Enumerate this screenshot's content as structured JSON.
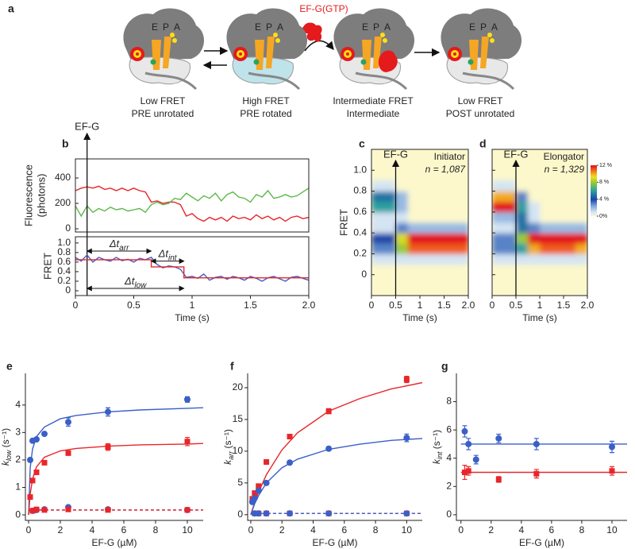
{
  "diagram": {
    "label": "a",
    "factor": "EF-G(GTP)",
    "states": [
      {
        "sites": [
          "E",
          "P",
          "A"
        ],
        "lines": [
          "Low FRET",
          "PRE unrotated"
        ]
      },
      {
        "sites": [
          "E",
          "P",
          "A"
        ],
        "lines": [
          "High FRET",
          "PRE rotated"
        ]
      },
      {
        "sites": [
          "E",
          "P",
          "A"
        ],
        "lines": [
          "Intermediate FRET",
          "Intermediate"
        ]
      },
      {
        "sites": [
          "E",
          "P",
          "A"
        ],
        "lines": [
          "Low FRET",
          "POST unrotated"
        ]
      }
    ]
  },
  "chart_data": [
    {
      "type": "line",
      "label": "b",
      "ylabel": [
        "Fluorescence",
        "(photons)"
      ],
      "xlim": [
        0,
        2
      ],
      "ylim": [
        -25,
        550
      ],
      "yticks": [
        0,
        200,
        400
      ],
      "frame": true,
      "marker": {
        "x": 0.1,
        "label": "EF-G"
      },
      "x": [
        0,
        0.05,
        0.1,
        0.15,
        0.2,
        0.25,
        0.3,
        0.35,
        0.4,
        0.45,
        0.5,
        0.55,
        0.6,
        0.65,
        0.7,
        0.75,
        0.8,
        0.85,
        0.9,
        0.95,
        1,
        1.05,
        1.1,
        1.15,
        1.2,
        1.25,
        1.3,
        1.35,
        1.4,
        1.45,
        1.5,
        1.55,
        1.6,
        1.65,
        1.7,
        1.75,
        1.8,
        1.85,
        1.9,
        1.95,
        2
      ],
      "series": [
        {
          "color": "#e8262a",
          "line": "solid",
          "values": [
            300,
            320,
            330,
            320,
            335,
            310,
            320,
            300,
            320,
            300,
            320,
            300,
            290,
            210,
            220,
            200,
            210,
            210,
            190,
            100,
            120,
            80,
            60,
            90,
            70,
            90,
            60,
            100,
            80,
            90,
            70,
            110,
            80,
            100,
            70,
            90,
            60,
            90,
            100,
            80,
            90
          ]
        },
        {
          "color": "#5cb848",
          "line": "solid",
          "values": [
            180,
            100,
            180,
            130,
            160,
            140,
            170,
            150,
            160,
            140,
            150,
            160,
            130,
            190,
            210,
            190,
            200,
            240,
            230,
            280,
            250,
            220,
            260,
            240,
            280,
            220,
            270,
            290,
            250,
            240,
            210,
            270,
            250,
            300,
            240,
            250,
            270,
            250,
            260,
            290,
            320
          ]
        }
      ]
    },
    {
      "type": "line",
      "ylabel": "FRET",
      "xlabel": "Time (s)",
      "xlim": [
        0,
        2
      ],
      "ylim": [
        -0.1,
        1.13
      ],
      "frame": true,
      "xticks": [
        0,
        0.5,
        1,
        1.5,
        {
          "value": 2,
          "label": "2.0"
        }
      ],
      "yticks": [
        0,
        0.2,
        0.4,
        0.6,
        0.8,
        {
          "value": 1,
          "label": "1.0"
        }
      ],
      "x": [
        0,
        0.05,
        0.1,
        0.15,
        0.2,
        0.25,
        0.3,
        0.35,
        0.4,
        0.45,
        0.5,
        0.55,
        0.6,
        0.65,
        0.7,
        0.75,
        0.8,
        0.85,
        0.9,
        0.95,
        1,
        1.05,
        1.1,
        1.15,
        1.2,
        1.25,
        1.3,
        1.35,
        1.4,
        1.45,
        1.5,
        1.55,
        1.6,
        1.65,
        1.7,
        1.75,
        1.8,
        1.85,
        1.9,
        1.95,
        2
      ],
      "series": [
        {
          "color": "#3b5fc8",
          "line": "solid",
          "values": [
            0.7,
            0.62,
            0.75,
            0.6,
            0.7,
            0.65,
            0.62,
            0.7,
            0.63,
            0.66,
            0.6,
            0.68,
            0.65,
            0.7,
            0.55,
            0.48,
            0.52,
            0.5,
            0.45,
            0.28,
            0.3,
            0.26,
            0.35,
            0.22,
            0.28,
            0.3,
            0.24,
            0.3,
            0.27,
            0.22,
            0.3,
            0.26,
            0.2,
            0.27,
            0.3,
            0.25,
            0.2,
            0.28,
            0.3,
            0.26,
            0.22
          ]
        },
        {
          "color": "#e8262a",
          "line": "solid",
          "x": [
            0,
            0.65,
            0.65,
            0.93,
            0.93,
            2
          ],
          "values": [
            0.65,
            0.65,
            0.5,
            0.5,
            0.27,
            0.27
          ]
        }
      ],
      "intervals": [
        {
          "symbol": "Δt",
          "sub": "arr",
          "from": 0.1,
          "to": 0.65,
          "y": 0.83
        },
        {
          "symbol": "Δt",
          "sub": "int",
          "from": 0.65,
          "to": 0.93,
          "y": 0.62
        },
        {
          "symbol": "Δt",
          "sub": "low",
          "from": 0.1,
          "to": 0.93,
          "y": 0.05
        }
      ]
    },
    {
      "type": "heatmap",
      "label": "c",
      "ylabel": "FRET",
      "xlabel": "Time (s)",
      "note": "Initiator",
      "count": "n = 1,087",
      "xlim": [
        0,
        2
      ],
      "ylim": [
        -0.2,
        1.2
      ],
      "frame": true,
      "marker": {
        "x": 0.5,
        "label": "EF-G"
      },
      "xticks": [
        0,
        0.5,
        1,
        1.5,
        {
          "value": 2,
          "label": "2.0"
        }
      ],
      "yticks": [
        0,
        0.2,
        0.4,
        0.6,
        0.8,
        {
          "value": 1,
          "label": "1.0"
        }
      ],
      "zlim": [
        0,
        12
      ],
      "x_edges": [
        0,
        0.25,
        0.5,
        0.75,
        1,
        1.25,
        1.5,
        1.75,
        2
      ],
      "y_edges": [
        0.1,
        0.2,
        0.3,
        0.4,
        0.5,
        0.6,
        0.7,
        0.8,
        0.9
      ],
      "values": [
        [
          1,
          1,
          1,
          1,
          1,
          1,
          1,
          1
        ],
        [
          3,
          3,
          8,
          11,
          11,
          11,
          11,
          11
        ],
        [
          4,
          4,
          9,
          12,
          12,
          12,
          12,
          12
        ],
        [
          1,
          1,
          3,
          2,
          2,
          2,
          2,
          2
        ],
        [
          1,
          1,
          1,
          0,
          0,
          0,
          0,
          0
        ],
        [
          6,
          6,
          2,
          0,
          0,
          0,
          0,
          0
        ],
        [
          5,
          5,
          2,
          0,
          0,
          0,
          0,
          0
        ],
        [
          1,
          1,
          0,
          0,
          0,
          0,
          0,
          0
        ]
      ]
    },
    {
      "type": "heatmap",
      "label": "d",
      "xlabel": "Time (s)",
      "note": "Elongator",
      "count": "n = 1,329",
      "xlim": [
        0,
        2
      ],
      "ylim": [
        -0.2,
        1.2
      ],
      "frame": true,
      "marker": {
        "x": 0.5,
        "label": "EF-G"
      },
      "xticks": [
        0,
        0.5,
        1,
        1.5,
        {
          "value": 2,
          "label": "2.0"
        }
      ],
      "yticks": [
        0,
        0.2,
        0.4,
        0.6,
        0.8,
        1
      ],
      "show_ytick_labels": false,
      "zlim": [
        0,
        12
      ],
      "colorbar": true,
      "zticks": [
        {
          "value": 12,
          "label": "12 %"
        },
        {
          "value": 8,
          "label": "8 %"
        },
        {
          "value": 4,
          "label": "4 %"
        },
        {
          "value": 0,
          "label": "0%"
        }
      ],
      "x_edges": [
        0,
        0.25,
        0.5,
        0.75,
        1,
        1.25,
        1.5,
        1.75,
        2
      ],
      "y_edges": [
        0.1,
        0.2,
        0.3,
        0.4,
        0.5,
        0.6,
        0.7,
        0.8,
        0.9
      ],
      "values": [
        [
          1,
          1,
          1,
          1,
          1,
          1,
          1,
          1
        ],
        [
          3,
          3,
          6,
          10,
          11,
          11,
          11,
          10
        ],
        [
          3,
          3,
          8,
          12,
          12,
          12,
          12,
          12
        ],
        [
          1,
          1,
          5,
          3,
          2,
          2,
          2,
          2
        ],
        [
          2,
          2,
          5,
          1,
          0,
          0,
          0,
          0
        ],
        [
          12,
          12,
          6,
          1,
          0,
          0,
          0,
          0
        ],
        [
          10,
          10,
          3,
          0,
          0,
          0,
          0,
          0
        ],
        [
          1,
          1,
          0,
          0,
          0,
          0,
          0,
          0
        ]
      ]
    },
    {
      "type": "scatter",
      "label": "e",
      "xlabel": "EF-G (µM)",
      "ylabel": {
        "symbol": "k",
        "sub": "low",
        "unit": " (s⁻¹)"
      },
      "xlim": [
        -0.2,
        11
      ],
      "ylim": [
        -0.2,
        5.15
      ],
      "xticks": [
        0,
        2,
        4,
        6,
        8,
        10
      ],
      "yticks": [
        0,
        1,
        2,
        3,
        4
      ],
      "frame": false,
      "series": [
        {
          "color": "#3b5fc8",
          "line": "solid",
          "x": [
            0,
            0.1,
            0.25,
            0.5,
            1,
            2,
            3,
            5,
            7,
            10,
            11
          ],
          "values": [
            0,
            1.7,
            2.4,
            2.85,
            3.2,
            3.5,
            3.62,
            3.75,
            3.82,
            3.88,
            3.9
          ]
        },
        {
          "color": "#e8262a",
          "line": "solid",
          "x": [
            0,
            0.1,
            0.25,
            0.5,
            1,
            2,
            3,
            5,
            7,
            10,
            11
          ],
          "values": [
            0,
            0.75,
            1.3,
            1.75,
            2.1,
            2.33,
            2.42,
            2.5,
            2.55,
            2.58,
            2.6
          ]
        },
        {
          "color": "#3b5fc8",
          "line": "dashed",
          "x": [
            0,
            11
          ],
          "values": [
            0.18,
            0.18
          ]
        },
        {
          "color": "#e8262a",
          "line": "dashed",
          "x": [
            0,
            11
          ],
          "values": [
            0.18,
            0.18
          ]
        },
        {
          "color": "#3b5fc8",
          "marker": "circle",
          "x": [
            0.1,
            0.25,
            0.5,
            1,
            2.5,
            5,
            10
          ],
          "values": [
            2.0,
            2.7,
            2.75,
            2.95,
            3.38,
            3.75,
            4.2
          ],
          "errors": [
            0.05,
            0.05,
            0.05,
            0.05,
            0.15,
            0.15,
            0.1
          ]
        },
        {
          "color": "#e8262a",
          "marker": "square",
          "x": [
            0.1,
            0.25,
            0.5,
            1,
            2.5,
            5,
            10
          ],
          "values": [
            0.65,
            1.25,
            1.55,
            1.9,
            2.25,
            2.47,
            2.67
          ],
          "errors": [
            0.05,
            0.05,
            0.05,
            0.05,
            0.08,
            0.12,
            0.15
          ]
        },
        {
          "color": "#3b5fc8",
          "marker": "circle",
          "x": [
            0.25,
            0.5,
            1,
            2.5,
            5,
            10
          ],
          "values": [
            0.15,
            0.18,
            0.2,
            0.28,
            0.2,
            0.18
          ]
        },
        {
          "color": "#e8262a",
          "marker": "square",
          "x": [
            0.25,
            0.5,
            1,
            2.5,
            5,
            10
          ],
          "values": [
            0.15,
            0.2,
            0.18,
            0.2,
            0.18,
            0.18
          ]
        }
      ]
    },
    {
      "type": "scatter",
      "label": "f",
      "xlabel": "EF-G (µM)",
      "ylabel": {
        "symbol": "k",
        "sub": "arr",
        "unit": " (s⁻¹)"
      },
      "xlim": [
        -0.2,
        11
      ],
      "ylim": [
        -0.9,
        22.25
      ],
      "xticks": [
        0,
        2,
        4,
        6,
        8,
        10
      ],
      "yticks": [
        0,
        5,
        10,
        15,
        20
      ],
      "frame": false,
      "series": [
        {
          "color": "#e8262a",
          "line": "solid",
          "x": [
            0,
            0.25,
            0.5,
            1,
            2,
            3,
            5,
            7,
            9,
            11
          ],
          "values": [
            0,
            1.9,
            3.55,
            6.3,
            10.2,
            12.9,
            16.3,
            18.3,
            19.8,
            20.8
          ]
        },
        {
          "color": "#3b5fc8",
          "line": "solid",
          "x": [
            0,
            0.25,
            0.5,
            1,
            2,
            3,
            5,
            7,
            9,
            11
          ],
          "values": [
            0,
            1.7,
            3.0,
            5.0,
            7.4,
            8.75,
            10.3,
            11.1,
            11.7,
            12.0
          ]
        },
        {
          "color": "#e8262a",
          "line": "dashed",
          "x": [
            0,
            11
          ],
          "values": [
            0.2,
            0.2
          ]
        },
        {
          "color": "#3b5fc8",
          "line": "dashed",
          "x": [
            0,
            11
          ],
          "values": [
            0.2,
            0.2
          ]
        },
        {
          "color": "#e8262a",
          "marker": "square",
          "x": [
            0.1,
            0.25,
            0.5,
            1,
            2.5,
            5,
            10
          ],
          "values": [
            2.5,
            3.4,
            4.5,
            8.3,
            12.3,
            16.3,
            21.3
          ],
          "errors": [
            0.3,
            0.3,
            0.3,
            0.3,
            0.3,
            0.4,
            0.5
          ]
        },
        {
          "color": "#3b5fc8",
          "marker": "circle",
          "x": [
            0.1,
            0.25,
            0.5,
            1,
            2.5,
            5,
            10
          ],
          "values": [
            2.0,
            2.6,
            3.8,
            5.0,
            8.2,
            10.4,
            12.1
          ],
          "errors": [
            0.2,
            0.2,
            0.2,
            0.3,
            0.3,
            0.3,
            0.6
          ]
        },
        {
          "color": "#e8262a",
          "marker": "square",
          "x": [
            0.25,
            0.5,
            1,
            2.5,
            5,
            10
          ],
          "values": [
            0.2,
            0.2,
            0.2,
            0.2,
            0.2,
            0.2
          ]
        },
        {
          "color": "#3b5fc8",
          "marker": "circle",
          "x": [
            0.25,
            0.5,
            1,
            2.5,
            5,
            10
          ],
          "values": [
            0.2,
            0.2,
            0.2,
            0.2,
            0.2,
            0.2
          ]
        }
      ]
    },
    {
      "type": "scatter",
      "label": "g",
      "xlabel": "EF-G (µM)",
      "ylabel": {
        "symbol": "k",
        "sub": "int",
        "unit": " (s⁻¹)"
      },
      "xlim": [
        -0.3,
        11
      ],
      "ylim": [
        -0.4,
        10
      ],
      "xticks": [
        0,
        2,
        4,
        6,
        8,
        10
      ],
      "yticks": [
        0,
        2,
        4,
        6,
        8
      ],
      "frame": false,
      "series": [
        {
          "color": "#3b5fc8",
          "line": "solid",
          "x": [
            0,
            11
          ],
          "values": [
            5,
            5
          ]
        },
        {
          "color": "#e8262a",
          "line": "solid",
          "x": [
            0,
            11
          ],
          "values": [
            3,
            3
          ]
        },
        {
          "color": "#3b5fc8",
          "marker": "circle",
          "x": [
            0.25,
            0.5,
            1,
            2.5,
            5,
            10
          ],
          "values": [
            5.9,
            5.0,
            3.9,
            5.4,
            5.0,
            4.8
          ],
          "errors": [
            0.4,
            0.4,
            0.3,
            0.3,
            0.4,
            0.4
          ]
        },
        {
          "color": "#e8262a",
          "marker": "square",
          "x": [
            0.25,
            0.5,
            2.5,
            5,
            10
          ],
          "values": [
            3.0,
            3.1,
            2.5,
            2.9,
            3.1
          ],
          "errors": [
            0.5,
            0.3,
            0.2,
            0.3,
            0.3
          ]
        }
      ]
    }
  ]
}
